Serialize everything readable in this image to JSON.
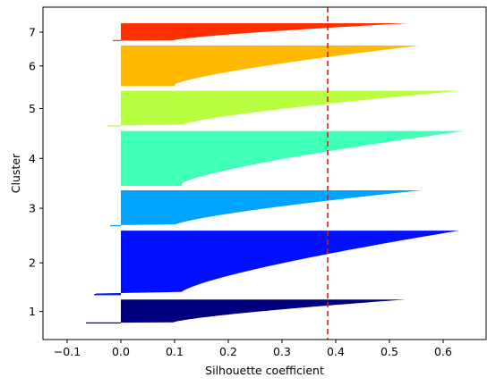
{
  "chart_data": {
    "type": "silhouette",
    "xlabel": "Silhouette coefficient",
    "ylabel": "Cluster",
    "xlim": [
      -0.145,
      0.68
    ],
    "x_ticks": [
      -0.1,
      0.0,
      0.1,
      0.2,
      0.3,
      0.4,
      0.5,
      0.6
    ],
    "x_tick_labels": [
      "−0.1",
      "0.0",
      "0.1",
      "0.2",
      "0.3",
      "0.4",
      "0.5",
      "0.6"
    ],
    "grid": false,
    "average_silhouette": 0.385,
    "average_line_color": "#e31a1c",
    "clusters": [
      {
        "label": "1",
        "color": "#00007f",
        "min": -0.065,
        "max": 0.53,
        "weight": 1.0
      },
      {
        "label": "2",
        "color": "#0010ff",
        "min": -0.05,
        "max": 0.63,
        "weight": 2.7
      },
      {
        "label": "3",
        "color": "#00a4ff",
        "min": -0.02,
        "max": 0.56,
        "weight": 1.5
      },
      {
        "label": "4",
        "color": "#40ffb7",
        "min": 0.0,
        "max": 0.64,
        "weight": 2.3
      },
      {
        "label": "5",
        "color": "#b7ff40",
        "min": -0.025,
        "max": 0.635,
        "weight": 1.5
      },
      {
        "label": "6",
        "color": "#ffb900",
        "min": 0.0,
        "max": 0.555,
        "weight": 1.7
      },
      {
        "label": "7",
        "color": "#ff3000",
        "min": -0.015,
        "max": 0.535,
        "weight": 0.75
      }
    ]
  }
}
